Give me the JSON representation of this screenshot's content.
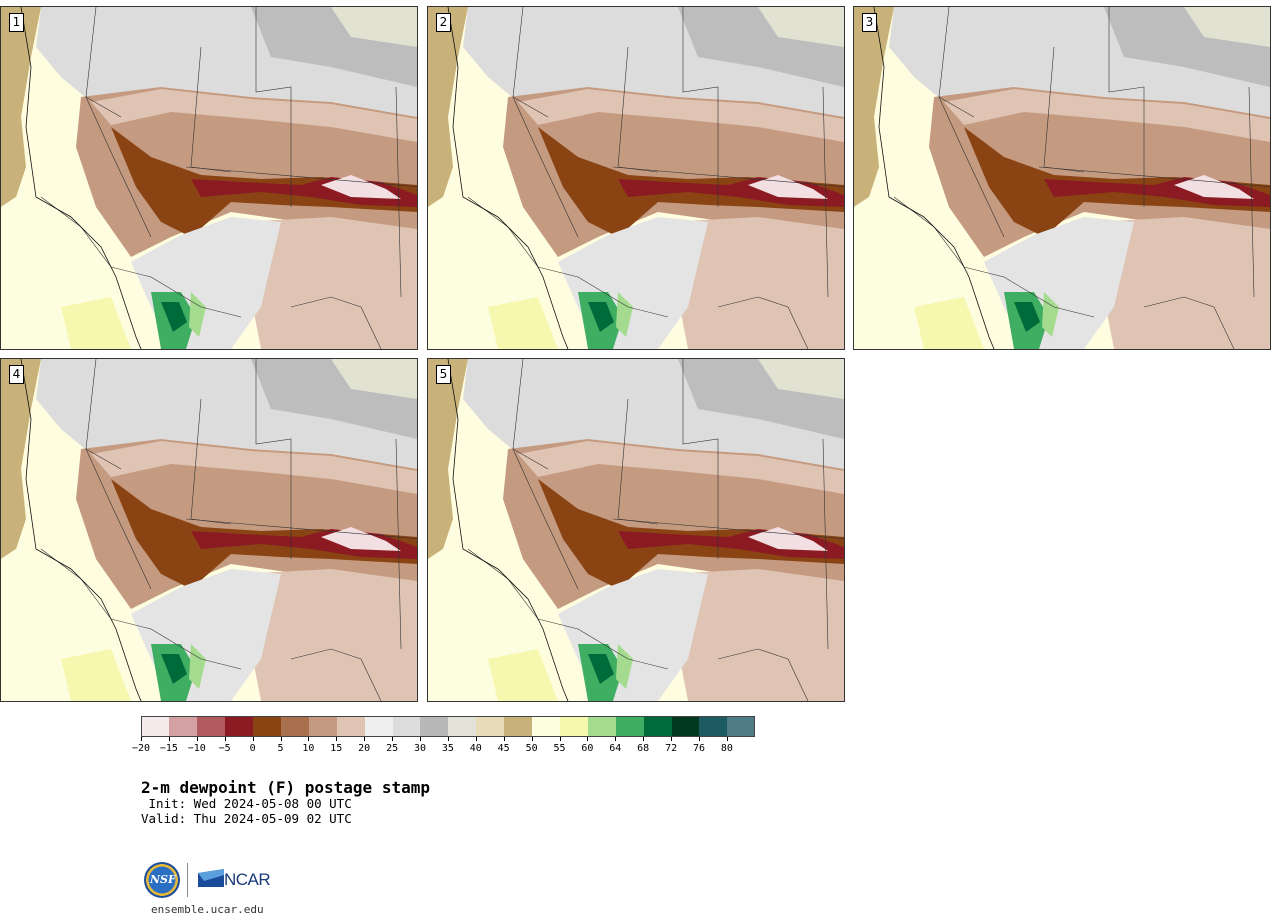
{
  "figure": {
    "title": "2-m dewpoint (F) postage stamp",
    "init": " Init: Wed 2024-05-08 00 UTC",
    "valid": "Valid: Thu 2024-05-09 02 UTC",
    "website": "ensemble.ucar.edu"
  },
  "logos": {
    "nsf_text": "NSF",
    "ncar_text": "NCAR"
  },
  "panels": [
    {
      "label": "1"
    },
    {
      "label": "2"
    },
    {
      "label": "3"
    },
    {
      "label": "4"
    },
    {
      "label": "5"
    }
  ],
  "colorbar": {
    "unit": "F",
    "ticks": [
      "−20",
      "−15",
      "−10",
      "−5",
      "0",
      "5",
      "10",
      "15",
      "20",
      "25",
      "30",
      "35",
      "40",
      "45",
      "50",
      "55",
      "60",
      "64",
      "68",
      "72",
      "76",
      "80"
    ],
    "colors": [
      "#f6e9ea",
      "#d3a0a3",
      "#b05a5e",
      "#8b1a23",
      "#8a4413",
      "#a8704d",
      "#c49a80",
      "#dfc3b3",
      "#efefef",
      "#dcdcdc",
      "#b8b8b8",
      "#e2e2d8",
      "#e8dcb8",
      "#c9b27a",
      "#fdfde0",
      "#f7f8b0",
      "#a4db8e",
      "#3fae62",
      "#006b3a",
      "#00391f",
      "#1d5b62",
      "#4f7c84"
    ]
  }
}
